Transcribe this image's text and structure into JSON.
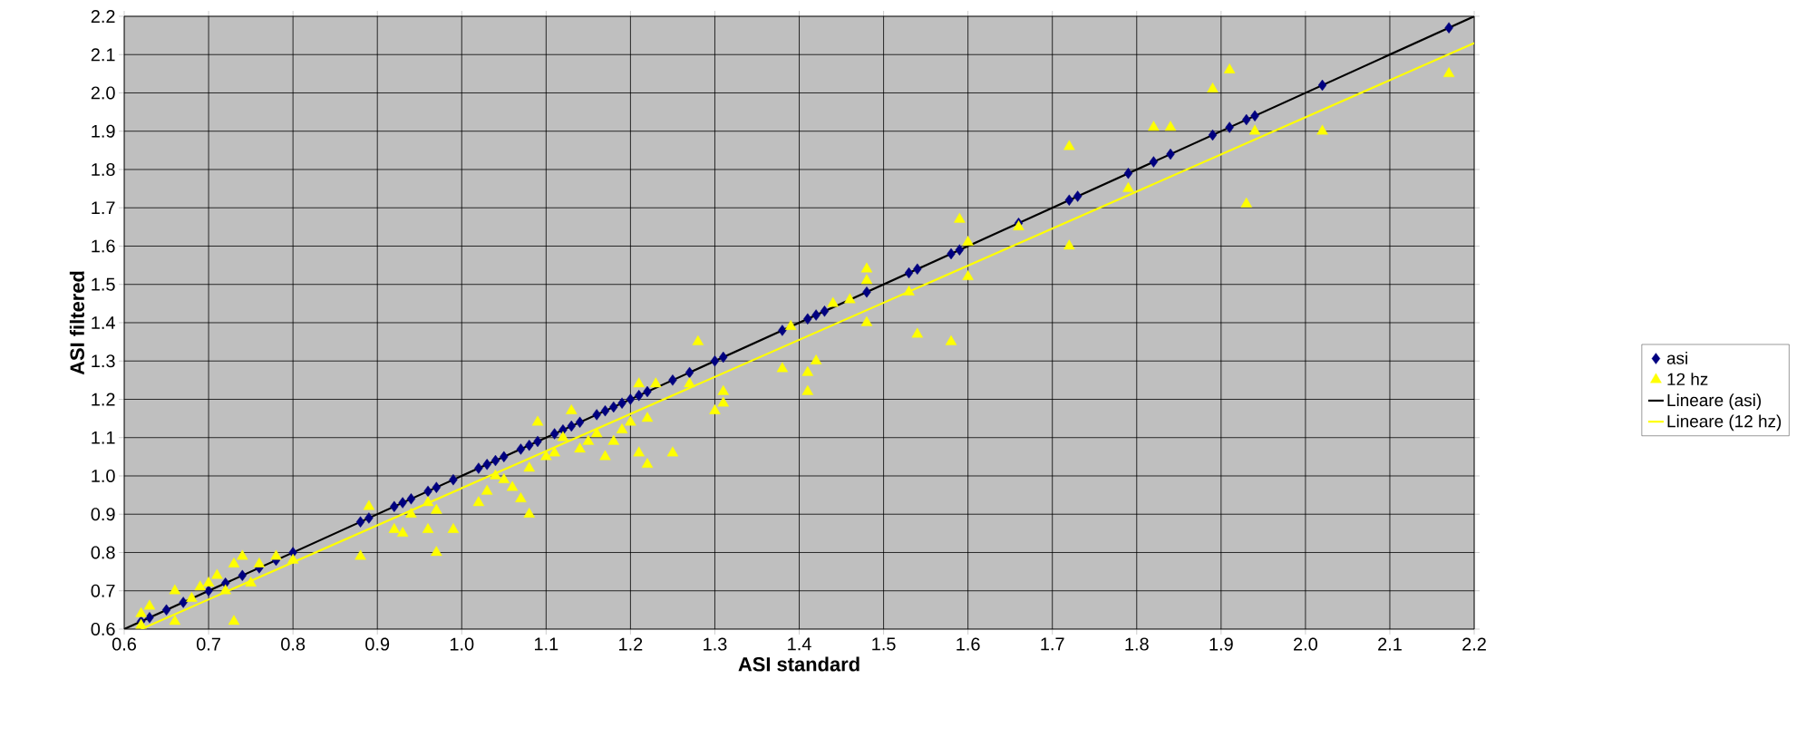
{
  "chart_data": {
    "type": "scatter",
    "xlabel": "ASI standard",
    "ylabel": "ASI filtered",
    "xlim": [
      0.6,
      2.2
    ],
    "ylim": [
      0.6,
      2.2
    ],
    "xticks": [
      {
        "value": 0.6,
        "label": "0.6"
      },
      {
        "value": 0.7,
        "label": "0.7"
      },
      {
        "value": 0.8,
        "label": "0.8"
      },
      {
        "value": 0.9,
        "label": "0.9"
      },
      {
        "value": 1.0,
        "label": "1.0"
      },
      {
        "value": 1.1,
        "label": "1.1"
      },
      {
        "value": 1.2,
        "label": "1.2"
      },
      {
        "value": 1.3,
        "label": "1.3"
      },
      {
        "value": 1.4,
        "label": "1.4"
      },
      {
        "value": 1.5,
        "label": "1.5"
      },
      {
        "value": 1.6,
        "label": "1.6"
      },
      {
        "value": 1.7,
        "label": "1.7"
      },
      {
        "value": 1.8,
        "label": "1.8"
      },
      {
        "value": 1.9,
        "label": "1.9"
      },
      {
        "value": 2.0,
        "label": "2.0"
      },
      {
        "value": 2.1,
        "label": "2.1"
      },
      {
        "value": 2.2,
        "label": "2.2"
      }
    ],
    "yticks": [
      {
        "value": 0.6,
        "label": "0.6"
      },
      {
        "value": 0.7,
        "label": "0.7"
      },
      {
        "value": 0.8,
        "label": "0.8"
      },
      {
        "value": 0.9,
        "label": "0.9"
      },
      {
        "value": 1.0,
        "label": "1.0"
      },
      {
        "value": 1.1,
        "label": "1.1"
      },
      {
        "value": 1.2,
        "label": "1.2"
      },
      {
        "value": 1.3,
        "label": "1.3"
      },
      {
        "value": 1.4,
        "label": "1.4"
      },
      {
        "value": 1.5,
        "label": "1.5"
      },
      {
        "value": 1.6,
        "label": "1.6"
      },
      {
        "value": 1.7,
        "label": "1.7"
      },
      {
        "value": 1.8,
        "label": "1.8"
      },
      {
        "value": 1.9,
        "label": "1.9"
      },
      {
        "value": 2.0,
        "label": "2.0"
      },
      {
        "value": 2.1,
        "label": "2.1"
      },
      {
        "value": 2.2,
        "label": "2.2"
      }
    ],
    "grid": true,
    "legend": "right",
    "series": [
      {
        "name": "asi",
        "marker": "diamond",
        "color": "#000080",
        "x": [
          0.62,
          0.63,
          0.65,
          0.67,
          0.7,
          0.72,
          0.74,
          0.76,
          0.78,
          0.8,
          0.88,
          0.89,
          0.92,
          0.93,
          0.94,
          0.96,
          0.97,
          0.99,
          1.02,
          1.03,
          1.04,
          1.05,
          1.07,
          1.08,
          1.09,
          1.11,
          1.12,
          1.13,
          1.14,
          1.16,
          1.17,
          1.18,
          1.19,
          1.2,
          1.21,
          1.22,
          1.25,
          1.27,
          1.3,
          1.31,
          1.38,
          1.41,
          1.42,
          1.43,
          1.48,
          1.53,
          1.54,
          1.58,
          1.59,
          1.66,
          1.72,
          1.73,
          1.79,
          1.82,
          1.84,
          1.89,
          1.91,
          1.93,
          1.94,
          2.02,
          2.17
        ],
        "values": [
          0.62,
          0.63,
          0.65,
          0.67,
          0.7,
          0.72,
          0.74,
          0.76,
          0.78,
          0.8,
          0.88,
          0.89,
          0.92,
          0.93,
          0.94,
          0.96,
          0.97,
          0.99,
          1.02,
          1.03,
          1.04,
          1.05,
          1.07,
          1.08,
          1.09,
          1.11,
          1.12,
          1.13,
          1.14,
          1.16,
          1.17,
          1.18,
          1.19,
          1.2,
          1.21,
          1.22,
          1.25,
          1.27,
          1.3,
          1.31,
          1.38,
          1.41,
          1.42,
          1.43,
          1.48,
          1.53,
          1.54,
          1.58,
          1.59,
          1.66,
          1.72,
          1.73,
          1.79,
          1.82,
          1.84,
          1.89,
          1.91,
          1.93,
          1.94,
          2.02,
          2.17
        ]
      },
      {
        "name": "12 hz",
        "marker": "triangle",
        "color": "#ffff00",
        "x": [
          0.62,
          0.62,
          0.63,
          0.66,
          0.66,
          0.68,
          0.69,
          0.7,
          0.71,
          0.72,
          0.73,
          0.73,
          0.74,
          0.75,
          0.76,
          0.78,
          0.8,
          0.88,
          0.89,
          0.92,
          0.93,
          0.94,
          0.96,
          0.96,
          0.97,
          0.97,
          0.99,
          1.02,
          1.03,
          1.04,
          1.05,
          1.06,
          1.07,
          1.08,
          1.08,
          1.09,
          1.1,
          1.11,
          1.12,
          1.13,
          1.14,
          1.15,
          1.16,
          1.17,
          1.18,
          1.19,
          1.2,
          1.21,
          1.21,
          1.22,
          1.22,
          1.23,
          1.25,
          1.27,
          1.28,
          1.3,
          1.31,
          1.31,
          1.38,
          1.39,
          1.41,
          1.41,
          1.42,
          1.44,
          1.46,
          1.48,
          1.48,
          1.48,
          1.53,
          1.54,
          1.58,
          1.59,
          1.6,
          1.6,
          1.66,
          1.72,
          1.72,
          1.79,
          1.82,
          1.84,
          1.89,
          1.91,
          1.93,
          1.94,
          2.02,
          2.17
        ],
        "values": [
          0.64,
          0.61,
          0.66,
          0.7,
          0.62,
          0.68,
          0.71,
          0.72,
          0.74,
          0.7,
          0.62,
          0.77,
          0.79,
          0.72,
          0.77,
          0.79,
          0.78,
          0.79,
          0.92,
          0.86,
          0.85,
          0.9,
          0.86,
          0.93,
          0.8,
          0.91,
          0.86,
          0.93,
          0.96,
          1.0,
          0.99,
          0.97,
          0.94,
          0.9,
          1.02,
          1.14,
          1.05,
          1.06,
          1.1,
          1.17,
          1.07,
          1.09,
          1.11,
          1.05,
          1.09,
          1.12,
          1.14,
          1.24,
          1.06,
          1.03,
          1.15,
          1.24,
          1.06,
          1.24,
          1.35,
          1.17,
          1.19,
          1.22,
          1.28,
          1.39,
          1.22,
          1.27,
          1.3,
          1.45,
          1.46,
          1.4,
          1.54,
          1.51,
          1.48,
          1.37,
          1.35,
          1.67,
          1.52,
          1.61,
          1.65,
          1.86,
          1.6,
          1.75,
          1.91,
          1.91,
          2.01,
          2.06,
          1.71,
          1.9,
          1.9,
          2.05
        ]
      },
      {
        "name": "Lineare (asi)",
        "type": "line",
        "color": "#000000",
        "x": [
          0.6,
          2.2
        ],
        "values": [
          0.6,
          2.2
        ]
      },
      {
        "name": "Lineare (12 hz)",
        "type": "line",
        "color": "#ffff00",
        "x": [
          0.62,
          2.2
        ],
        "values": [
          0.6,
          2.13
        ]
      }
    ]
  }
}
